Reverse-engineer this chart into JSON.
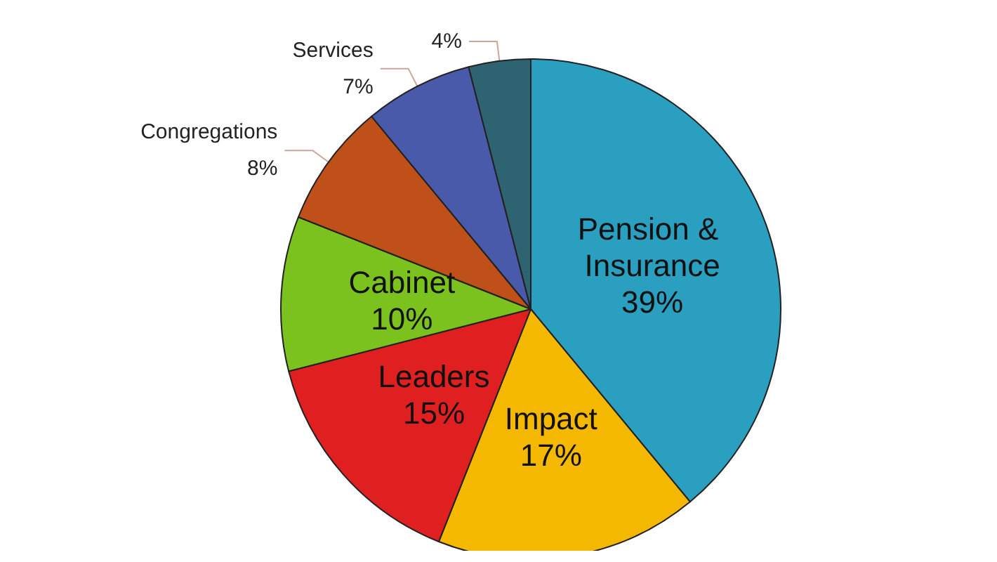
{
  "chart_data": {
    "type": "pie",
    "categories": [
      "Pension & Insurance",
      "Impact",
      "Leaders",
      "Cabinet",
      "Congregations",
      "Services",
      null
    ],
    "values": [
      39,
      17,
      15,
      10,
      8,
      7,
      4
    ],
    "value_labels": [
      "39%",
      "17%",
      "15%",
      "10%",
      "8%",
      "7%",
      "4%"
    ],
    "colors": [
      "#2a9fc0",
      "#f5b800",
      "#e02020",
      "#7cc21e",
      "#c0501a",
      "#4a5aaa",
      "#2e6472"
    ],
    "legend": false
  }
}
